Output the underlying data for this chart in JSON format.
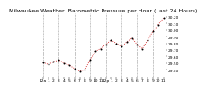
{
  "title": "Milwaukee Weather  Barometric Pressure per Hour (Last 24 Hours)",
  "hours": [
    0,
    1,
    2,
    3,
    4,
    5,
    6,
    7,
    8,
    9,
    10,
    11,
    12,
    13,
    14,
    15,
    16,
    17,
    18,
    19,
    20,
    21,
    22,
    23
  ],
  "pressure": [
    29.51,
    29.48,
    29.52,
    29.55,
    29.5,
    29.47,
    29.42,
    29.38,
    29.4,
    29.55,
    29.68,
    29.72,
    29.78,
    29.85,
    29.8,
    29.75,
    29.82,
    29.88,
    29.78,
    29.72,
    29.85,
    29.98,
    30.08,
    30.18
  ],
  "ylim_min": 29.3,
  "ylim_max": 30.25,
  "dot_color": "#000000",
  "line_color": "#cc0000",
  "grid_color": "#999999",
  "bg_color": "#ffffff",
  "title_fontsize": 4.5,
  "tick_fontsize": 3.2,
  "x_tick_labels": [
    "12a",
    "1",
    "2",
    "3",
    "4",
    "5",
    "6",
    "7",
    "8",
    "9",
    "10",
    "11",
    "12p",
    "1",
    "2",
    "3",
    "4",
    "5",
    "6",
    "7",
    "8",
    "9",
    "10",
    "11"
  ],
  "ytick_values": [
    29.4,
    29.5,
    29.6,
    29.7,
    29.8,
    29.9,
    30.0,
    30.1,
    30.2
  ],
  "vgrid_x": [
    0,
    3,
    6,
    9,
    12,
    15,
    18,
    21
  ]
}
